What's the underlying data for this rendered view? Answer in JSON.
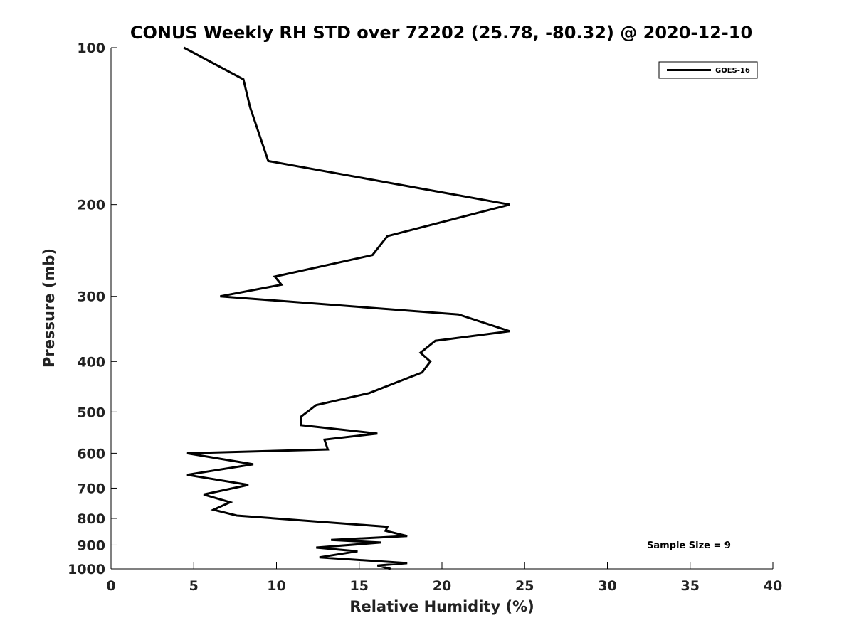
{
  "chart_data": {
    "type": "line",
    "title": "CONUS Weekly RH STD over 72202 (25.78, -80.32) @ 2020-12-10",
    "xlabel": "Relative Humidity (%)",
    "ylabel": "Pressure (mb)",
    "xlim": [
      0,
      40
    ],
    "ylim": [
      100,
      1000
    ],
    "yscale": "log",
    "grid": false,
    "legend_position": "top-right",
    "xticks": [
      "0",
      "5",
      "10",
      "15",
      "20",
      "25",
      "30",
      "35",
      "40"
    ],
    "xtick_values": [
      0,
      5,
      10,
      15,
      20,
      25,
      30,
      35,
      40
    ],
    "yticks": [
      "100",
      "200",
      "300",
      "400",
      "500",
      "600",
      "700",
      "800",
      "900",
      "1000"
    ],
    "ytick_values": [
      100,
      200,
      300,
      400,
      500,
      600,
      700,
      800,
      900,
      1000
    ],
    "series": [
      {
        "name": "GOES-16",
        "color": "#000000",
        "x": [
          4.4,
          8.0,
          8.4,
          9.5,
          24.1,
          16.7,
          15.8,
          9.9,
          10.3,
          6.6,
          21.0,
          24.1,
          19.6,
          18.7,
          19.3,
          18.8,
          15.6,
          12.4,
          11.5,
          11.5,
          16.1,
          12.9,
          13.1,
          4.6,
          8.6,
          4.6,
          8.3,
          5.6,
          7.2,
          6.2,
          7.6,
          16.7,
          16.6,
          17.9,
          13.3,
          16.3,
          12.4,
          14.9,
          12.6,
          17.9,
          16.1,
          16.9
        ],
        "y": [
          100,
          115,
          130,
          165,
          200,
          230,
          250,
          275,
          285,
          300,
          325,
          350,
          365,
          385,
          400,
          420,
          460,
          485,
          510,
          530,
          550,
          565,
          590,
          600,
          630,
          660,
          690,
          720,
          745,
          770,
          790,
          830,
          845,
          865,
          880,
          890,
          910,
          925,
          950,
          975,
          985,
          1000
        ]
      }
    ],
    "annotations": [
      "Sample Size = 9"
    ]
  }
}
